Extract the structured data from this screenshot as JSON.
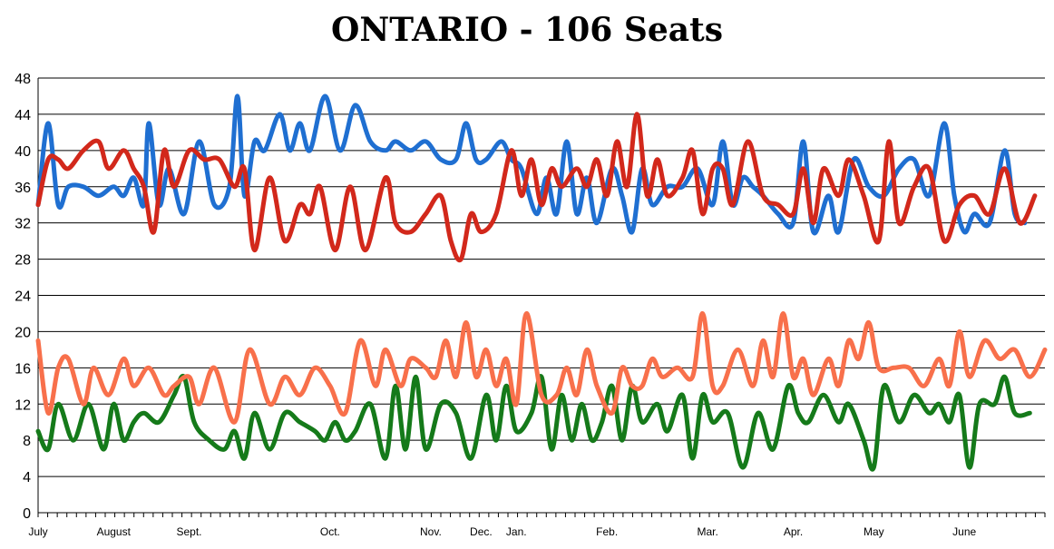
{
  "chart_data": {
    "type": "line",
    "title": "ONTARIO - 106 Seats",
    "xlabel": "",
    "ylabel": "",
    "ylim": [
      0,
      48
    ],
    "yticks": [
      0,
      4,
      8,
      12,
      16,
      20,
      24,
      28,
      32,
      36,
      40,
      44,
      48
    ],
    "grid": true,
    "legend": "none",
    "months": [
      "July",
      "August",
      "Sept.",
      "Oct.",
      "Nov.",
      "Dec.",
      "Jan.",
      "Feb.",
      "Mar.",
      "Apr.",
      "May",
      "June"
    ],
    "month_positions": [
      0,
      0.75,
      1.5,
      2.9,
      3.9,
      4.4,
      4.75,
      5.65,
      6.65,
      7.5,
      8.3,
      9.2
    ],
    "x_max": 10.0,
    "series": [
      {
        "color": "#1f6fd1",
        "values": [
          [
            0,
            34
          ],
          [
            0.1,
            43
          ],
          [
            0.2,
            34
          ],
          [
            0.3,
            36
          ],
          [
            0.45,
            36
          ],
          [
            0.6,
            35
          ],
          [
            0.75,
            36
          ],
          [
            0.85,
            35
          ],
          [
            0.95,
            37
          ],
          [
            1.05,
            34
          ],
          [
            1.1,
            43
          ],
          [
            1.2,
            34
          ],
          [
            1.3,
            38
          ],
          [
            1.45,
            33
          ],
          [
            1.6,
            41
          ],
          [
            1.75,
            34
          ],
          [
            1.9,
            36
          ],
          [
            1.98,
            46
          ],
          [
            2.05,
            35
          ],
          [
            2.15,
            41
          ],
          [
            2.25,
            40
          ],
          [
            2.4,
            44
          ],
          [
            2.5,
            40
          ],
          [
            2.6,
            43
          ],
          [
            2.7,
            40
          ],
          [
            2.85,
            46
          ],
          [
            3.0,
            40
          ],
          [
            3.15,
            45
          ],
          [
            3.3,
            41
          ],
          [
            3.45,
            40
          ],
          [
            3.55,
            41
          ],
          [
            3.7,
            40
          ],
          [
            3.85,
            41
          ],
          [
            4.0,
            39
          ],
          [
            4.15,
            39
          ],
          [
            4.25,
            43
          ],
          [
            4.35,
            39
          ],
          [
            4.45,
            39
          ],
          [
            4.6,
            41
          ],
          [
            4.7,
            39
          ],
          [
            4.8,
            38
          ],
          [
            4.95,
            33
          ],
          [
            5.05,
            37
          ],
          [
            5.15,
            33
          ],
          [
            5.25,
            41
          ],
          [
            5.35,
            33
          ],
          [
            5.45,
            37
          ],
          [
            5.55,
            32
          ],
          [
            5.7,
            38
          ],
          [
            5.8,
            35
          ],
          [
            5.9,
            31
          ],
          [
            6.0,
            38
          ],
          [
            6.1,
            34
          ],
          [
            6.25,
            36
          ],
          [
            6.4,
            36
          ],
          [
            6.55,
            38
          ],
          [
            6.7,
            34
          ],
          [
            6.8,
            41
          ],
          [
            6.9,
            34
          ],
          [
            7.0,
            37
          ],
          [
            7.1,
            36
          ],
          [
            7.2,
            35
          ],
          [
            7.35,
            33
          ],
          [
            7.5,
            32
          ],
          [
            7.6,
            41
          ],
          [
            7.7,
            31
          ],
          [
            7.85,
            35
          ],
          [
            7.95,
            31
          ],
          [
            8.1,
            39
          ],
          [
            8.25,
            36
          ],
          [
            8.4,
            35
          ],
          [
            8.55,
            38
          ],
          [
            8.7,
            39
          ],
          [
            8.85,
            35
          ],
          [
            9.0,
            43
          ],
          [
            9.1,
            35
          ],
          [
            9.2,
            31
          ],
          [
            9.3,
            33
          ],
          [
            9.45,
            32
          ],
          [
            9.6,
            40
          ],
          [
            9.7,
            33
          ],
          [
            9.8,
            32
          ]
        ]
      },
      {
        "color": "#d2281b",
        "values": [
          [
            0,
            34
          ],
          [
            0.1,
            39
          ],
          [
            0.2,
            39
          ],
          [
            0.3,
            38
          ],
          [
            0.45,
            40
          ],
          [
            0.6,
            41
          ],
          [
            0.7,
            38
          ],
          [
            0.85,
            40
          ],
          [
            0.95,
            38
          ],
          [
            1.05,
            36
          ],
          [
            1.15,
            31
          ],
          [
            1.25,
            40
          ],
          [
            1.35,
            36
          ],
          [
            1.5,
            40
          ],
          [
            1.65,
            39
          ],
          [
            1.8,
            39
          ],
          [
            1.95,
            36
          ],
          [
            2.05,
            38
          ],
          [
            2.15,
            29
          ],
          [
            2.3,
            37
          ],
          [
            2.45,
            30
          ],
          [
            2.6,
            34
          ],
          [
            2.7,
            33
          ],
          [
            2.8,
            36
          ],
          [
            2.95,
            29
          ],
          [
            3.1,
            36
          ],
          [
            3.25,
            29
          ],
          [
            3.45,
            37
          ],
          [
            3.55,
            32
          ],
          [
            3.7,
            31
          ],
          [
            3.85,
            33
          ],
          [
            4.0,
            35
          ],
          [
            4.1,
            30
          ],
          [
            4.2,
            28
          ],
          [
            4.3,
            33
          ],
          [
            4.4,
            31
          ],
          [
            4.55,
            33
          ],
          [
            4.7,
            40
          ],
          [
            4.8,
            35
          ],
          [
            4.9,
            39
          ],
          [
            5.0,
            34
          ],
          [
            5.1,
            38
          ],
          [
            5.2,
            36
          ],
          [
            5.35,
            38
          ],
          [
            5.45,
            36
          ],
          [
            5.55,
            39
          ],
          [
            5.65,
            35
          ],
          [
            5.75,
            41
          ],
          [
            5.85,
            36
          ],
          [
            5.95,
            44
          ],
          [
            6.05,
            35
          ],
          [
            6.15,
            39
          ],
          [
            6.25,
            35
          ],
          [
            6.4,
            37
          ],
          [
            6.5,
            40
          ],
          [
            6.6,
            33
          ],
          [
            6.7,
            38
          ],
          [
            6.8,
            38
          ],
          [
            6.9,
            34
          ],
          [
            7.05,
            41
          ],
          [
            7.2,
            35
          ],
          [
            7.35,
            34
          ],
          [
            7.5,
            33
          ],
          [
            7.6,
            38
          ],
          [
            7.7,
            32
          ],
          [
            7.8,
            38
          ],
          [
            7.95,
            35
          ],
          [
            8.05,
            39
          ],
          [
            8.2,
            35
          ],
          [
            8.35,
            30
          ],
          [
            8.45,
            41
          ],
          [
            8.55,
            32
          ],
          [
            8.7,
            36
          ],
          [
            8.85,
            38
          ],
          [
            9.0,
            30
          ],
          [
            9.15,
            34
          ],
          [
            9.3,
            35
          ],
          [
            9.45,
            33
          ],
          [
            9.6,
            38
          ],
          [
            9.75,
            32
          ],
          [
            9.9,
            35
          ]
        ]
      },
      {
        "color": "#f8704b",
        "values": [
          [
            0,
            19
          ],
          [
            0.1,
            11
          ],
          [
            0.2,
            16
          ],
          [
            0.3,
            17
          ],
          [
            0.45,
            12
          ],
          [
            0.55,
            16
          ],
          [
            0.7,
            13
          ],
          [
            0.85,
            17
          ],
          [
            0.95,
            14
          ],
          [
            1.1,
            16
          ],
          [
            1.25,
            13
          ],
          [
            1.35,
            14
          ],
          [
            1.5,
            15
          ],
          [
            1.6,
            12
          ],
          [
            1.75,
            16
          ],
          [
            1.95,
            10
          ],
          [
            2.1,
            18
          ],
          [
            2.3,
            12
          ],
          [
            2.45,
            15
          ],
          [
            2.6,
            13
          ],
          [
            2.75,
            16
          ],
          [
            2.9,
            14
          ],
          [
            3.05,
            11
          ],
          [
            3.2,
            19
          ],
          [
            3.35,
            14
          ],
          [
            3.45,
            18
          ],
          [
            3.6,
            14
          ],
          [
            3.7,
            17
          ],
          [
            3.85,
            16
          ],
          [
            3.95,
            15
          ],
          [
            4.05,
            19
          ],
          [
            4.15,
            15
          ],
          [
            4.25,
            21
          ],
          [
            4.35,
            15
          ],
          [
            4.45,
            18
          ],
          [
            4.55,
            14
          ],
          [
            4.65,
            17
          ],
          [
            4.75,
            12
          ],
          [
            4.85,
            22
          ],
          [
            5.0,
            13
          ],
          [
            5.15,
            13
          ],
          [
            5.25,
            16
          ],
          [
            5.35,
            13
          ],
          [
            5.45,
            18
          ],
          [
            5.55,
            14
          ],
          [
            5.7,
            11
          ],
          [
            5.8,
            16
          ],
          [
            5.9,
            14
          ],
          [
            6.0,
            14
          ],
          [
            6.1,
            17
          ],
          [
            6.2,
            15
          ],
          [
            6.35,
            16
          ],
          [
            6.5,
            15
          ],
          [
            6.6,
            22
          ],
          [
            6.7,
            14
          ],
          [
            6.8,
            14
          ],
          [
            6.95,
            18
          ],
          [
            7.1,
            14
          ],
          [
            7.2,
            19
          ],
          [
            7.3,
            15
          ],
          [
            7.4,
            22
          ],
          [
            7.5,
            15
          ],
          [
            7.6,
            17
          ],
          [
            7.7,
            13
          ],
          [
            7.85,
            17
          ],
          [
            7.95,
            14
          ],
          [
            8.05,
            19
          ],
          [
            8.15,
            17
          ],
          [
            8.25,
            21
          ],
          [
            8.35,
            16
          ],
          [
            8.5,
            16
          ],
          [
            8.65,
            16
          ],
          [
            8.8,
            14
          ],
          [
            8.95,
            17
          ],
          [
            9.05,
            14
          ],
          [
            9.15,
            20
          ],
          [
            9.25,
            15
          ],
          [
            9.4,
            19
          ],
          [
            9.55,
            17
          ],
          [
            9.7,
            18
          ],
          [
            9.85,
            15
          ],
          [
            10.0,
            18
          ]
        ]
      },
      {
        "color": "#157a1a",
        "values": [
          [
            0,
            9
          ],
          [
            0.1,
            7
          ],
          [
            0.2,
            12
          ],
          [
            0.35,
            8
          ],
          [
            0.5,
            12
          ],
          [
            0.65,
            7
          ],
          [
            0.75,
            12
          ],
          [
            0.85,
            8
          ],
          [
            0.95,
            10
          ],
          [
            1.05,
            11
          ],
          [
            1.2,
            10
          ],
          [
            1.35,
            13
          ],
          [
            1.45,
            15
          ],
          [
            1.55,
            10
          ],
          [
            1.7,
            8
          ],
          [
            1.85,
            7
          ],
          [
            1.95,
            9
          ],
          [
            2.05,
            6
          ],
          [
            2.15,
            11
          ],
          [
            2.3,
            7
          ],
          [
            2.45,
            11
          ],
          [
            2.6,
            10
          ],
          [
            2.75,
            9
          ],
          [
            2.85,
            8
          ],
          [
            2.95,
            10
          ],
          [
            3.05,
            8
          ],
          [
            3.15,
            9
          ],
          [
            3.3,
            12
          ],
          [
            3.45,
            6
          ],
          [
            3.55,
            14
          ],
          [
            3.65,
            7
          ],
          [
            3.75,
            15
          ],
          [
            3.85,
            7
          ],
          [
            4.0,
            12
          ],
          [
            4.15,
            11
          ],
          [
            4.3,
            6
          ],
          [
            4.45,
            13
          ],
          [
            4.55,
            8
          ],
          [
            4.65,
            14
          ],
          [
            4.75,
            9
          ],
          [
            4.9,
            11
          ],
          [
            5.0,
            15
          ],
          [
            5.1,
            7
          ],
          [
            5.2,
            13
          ],
          [
            5.3,
            8
          ],
          [
            5.4,
            12
          ],
          [
            5.5,
            8
          ],
          [
            5.6,
            10
          ],
          [
            5.7,
            14
          ],
          [
            5.8,
            8
          ],
          [
            5.9,
            14
          ],
          [
            6.0,
            10
          ],
          [
            6.15,
            12
          ],
          [
            6.25,
            9
          ],
          [
            6.4,
            13
          ],
          [
            6.5,
            6
          ],
          [
            6.6,
            13
          ],
          [
            6.7,
            10
          ],
          [
            6.85,
            11
          ],
          [
            7.0,
            5
          ],
          [
            7.15,
            11
          ],
          [
            7.3,
            7
          ],
          [
            7.45,
            14
          ],
          [
            7.55,
            11
          ],
          [
            7.65,
            10
          ],
          [
            7.8,
            13
          ],
          [
            7.95,
            10
          ],
          [
            8.05,
            12
          ],
          [
            8.2,
            8
          ],
          [
            8.3,
            5
          ],
          [
            8.4,
            14
          ],
          [
            8.55,
            10
          ],
          [
            8.7,
            13
          ],
          [
            8.85,
            11
          ],
          [
            8.95,
            12
          ],
          [
            9.05,
            10
          ],
          [
            9.15,
            13
          ],
          [
            9.25,
            5
          ],
          [
            9.35,
            12
          ],
          [
            9.5,
            12
          ],
          [
            9.6,
            15
          ],
          [
            9.7,
            11
          ],
          [
            9.85,
            11
          ]
        ]
      }
    ]
  }
}
